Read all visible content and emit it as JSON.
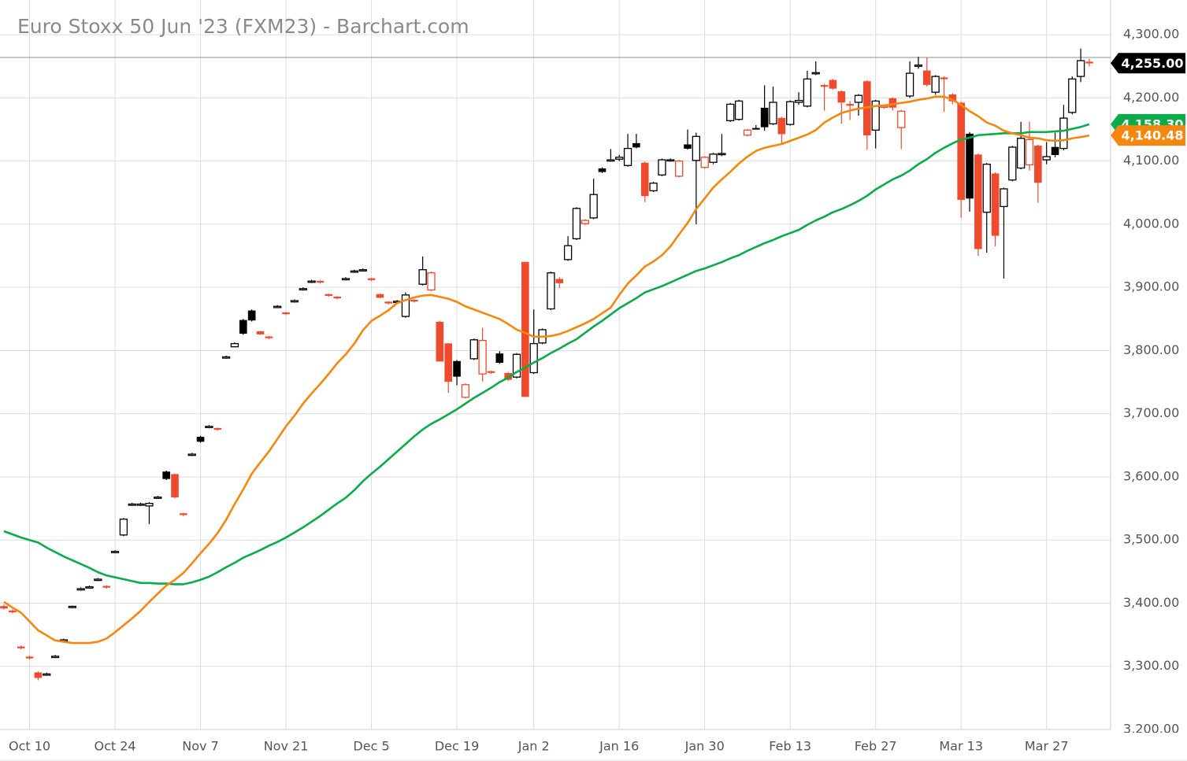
{
  "chart_data": {
    "type": "candlestick",
    "title": "Euro Stoxx 50 Jun '23 (FXM23) - Barchart.com",
    "categories": [
      null,
      null,
      null,
      "Oct 10",
      null,
      null,
      null,
      null,
      null,
      null,
      null,
      null,
      null,
      "Oct 24",
      null,
      null,
      null,
      null,
      null,
      null,
      null,
      null,
      null,
      "Nov 7",
      null,
      null,
      null,
      null,
      null,
      null,
      null,
      null,
      null,
      "Nov 21",
      null,
      null,
      null,
      null,
      null,
      null,
      null,
      null,
      null,
      "Dec 5",
      null,
      null,
      null,
      null,
      null,
      null,
      null,
      null,
      null,
      "Dec 19",
      null,
      null,
      null,
      null,
      null,
      null,
      null,
      null,
      "Jan 2",
      null,
      null,
      null,
      null,
      null,
      null,
      null,
      null,
      null,
      "Jan 16",
      null,
      null,
      null,
      null,
      null,
      null,
      null,
      null,
      null,
      "Jan 30",
      null,
      null,
      null,
      null,
      null,
      null,
      null,
      null,
      null,
      "Feb 13",
      null,
      null,
      null,
      null,
      null,
      null,
      null,
      null,
      null,
      "Feb 27",
      null,
      null,
      null,
      null,
      null,
      null,
      null,
      null,
      null,
      "Mar 13",
      null,
      null,
      null,
      null,
      null,
      null,
      null,
      null,
      null,
      "Mar 27",
      null,
      null,
      null,
      null,
      null
    ],
    "open": [
      3395,
      3388,
      3331,
      3315,
      3290,
      3286,
      3314,
      3340,
      3393,
      3421,
      3424,
      3436,
      3427,
      3480,
      3508,
      3555,
      3555,
      3554,
      3566,
      3608,
      3604,
      3542,
      3634,
      3663,
      3678,
      3677,
      3788,
      3806,
      3848,
      3863,
      3830,
      3822,
      3868,
      3860,
      3877,
      3896,
      3908,
      3910,
      3889,
      3885,
      3912,
      3924,
      3926,
      3914,
      3889,
      3877,
      3876,
      3854,
      3880,
      3905,
      3896,
      3845,
      3811,
      3783,
      3726,
      3787,
      3763,
      3767,
      3795,
      3764,
      3758,
      3940,
      3765,
      3812,
      3866,
      3913,
      3944,
      3977,
      4001,
      4010,
      4088,
      4100,
      4103,
      4093,
      4128,
      4097,
      4053,
      4078,
      4101,
      4076,
      4126,
      4101,
      4090,
      4098,
      4111,
      4164,
      4166,
      4141,
      4152,
      4184,
      4159,
      4168,
      4158,
      4193,
      4187,
      4239,
      4220,
      4228,
      4210,
      4190,
      4193,
      4226,
      4149,
      4186,
      4199,
      4153,
      4203,
      4250,
      4243,
      4209,
      4232,
      4205,
      4192,
      4143,
      4110,
      4019,
      4080,
      4028,
      4070,
      4089,
      4094,
      4124,
      4102,
      4122,
      4120,
      4177,
      4234,
      4257
    ],
    "high": [
      3398,
      3390,
      3333,
      3317,
      3292,
      3290,
      3318,
      3344,
      3396,
      3425,
      3428,
      3440,
      3428,
      3484,
      3535,
      3559,
      3559,
      3560,
      3570,
      3610,
      3605,
      3543,
      3638,
      3665,
      3682,
      3678,
      3792,
      3813,
      3850,
      3865,
      3831,
      3823,
      3872,
      3861,
      3881,
      3900,
      3912,
      3911,
      3890,
      3886,
      3916,
      3928,
      3930,
      3915,
      3890,
      3878,
      3880,
      3892,
      3881,
      3949,
      3925,
      3847,
      3812,
      3785,
      3748,
      3819,
      3836,
      3768,
      3799,
      3766,
      3796,
      3940,
      3865,
      3835,
      3925,
      3916,
      3981,
      4027,
      4008,
      4072,
      4090,
      4119,
      4110,
      4143,
      4143,
      4099,
      4067,
      4104,
      4104,
      4102,
      4150,
      4145,
      4108,
      4113,
      4143,
      4192,
      4197,
      4151,
      4157,
      4220,
      4218,
      4170,
      4196,
      4209,
      4243,
      4258,
      4222,
      4230,
      4212,
      4195,
      4206,
      4228,
      4197,
      4190,
      4201,
      4181,
      4258,
      4265,
      4264,
      4236,
      4234,
      4207,
      4194,
      4146,
      4112,
      4097,
      4082,
      4058,
      4124,
      4162,
      4162,
      4126,
      4130,
      4145,
      4189,
      4234,
      4278,
      4262
    ],
    "low": [
      3390,
      3384,
      3327,
      3311,
      3278,
      3285,
      3313,
      3339,
      3392,
      3420,
      3423,
      3435,
      3423,
      3479,
      3506,
      3554,
      3554,
      3525,
      3565,
      3595,
      3566,
      3538,
      3633,
      3654,
      3677,
      3673,
      3787,
      3805,
      3825,
      3846,
      3825,
      3818,
      3867,
      3856,
      3876,
      3895,
      3907,
      3906,
      3885,
      3881,
      3911,
      3923,
      3925,
      3910,
      3883,
      3873,
      3875,
      3852,
      3876,
      3903,
      3894,
      3783,
      3733,
      3745,
      3724,
      3785,
      3751,
      3763,
      3779,
      3752,
      3756,
      3727,
      3763,
      3810,
      3864,
      3899,
      3942,
      3975,
      3999,
      4008,
      4081,
      4099,
      4100,
      4091,
      4120,
      4035,
      4051,
      4076,
      4099,
      4074,
      4118,
      4000,
      4088,
      4095,
      4108,
      4162,
      4164,
      4139,
      4150,
      4148,
      4157,
      4128,
      4156,
      4189,
      4185,
      4236,
      4180,
      4213,
      4159,
      4165,
      4172,
      4118,
      4120,
      4183,
      4180,
      4119,
      4200,
      4246,
      4218,
      4205,
      4178,
      4190,
      4010,
      4020,
      3950,
      3955,
      3965,
      3914,
      4068,
      4087,
      4085,
      4034,
      4095,
      4106,
      4117,
      4174,
      4225,
      4250
    ],
    "close": [
      3392,
      3386,
      3329,
      3313,
      3282,
      3288,
      3316,
      3342,
      3395,
      3423,
      3426,
      3438,
      3425,
      3482,
      3533,
      3557,
      3557,
      3558,
      3568,
      3597,
      3568,
      3540,
      3636,
      3656,
      3680,
      3675,
      3790,
      3811,
      3827,
      3848,
      3826,
      3820,
      3870,
      3858,
      3879,
      3898,
      3910,
      3908,
      3887,
      3883,
      3914,
      3926,
      3928,
      3912,
      3884,
      3875,
      3878,
      3888,
      3878,
      3928,
      3923,
      3783,
      3751,
      3759,
      3746,
      3817,
      3816,
      3765,
      3781,
      3754,
      3794,
      3727,
      3811,
      3833,
      3923,
      3907,
      3966,
      4025,
      4006,
      4047,
      4083,
      4102,
      4106,
      4120,
      4122,
      4045,
      4065,
      4102,
      4102,
      4100,
      4120,
      4139,
      4106,
      4111,
      4112,
      4190,
      4195,
      4149,
      4151,
      4154,
      4193,
      4143,
      4194,
      4196,
      4230,
      4240,
      4218,
      4215,
      4193,
      4188,
      4204,
      4141,
      4195,
      4187,
      4185,
      4179,
      4239,
      4252,
      4221,
      4234,
      4230,
      4195,
      4039,
      4041,
      3961,
      4095,
      3982,
      4056,
      4122,
      4136,
      4134,
      4066,
      4107,
      4110,
      4168,
      4230,
      4259,
      4255
    ],
    "last_label": "4,255.00",
    "colors": {
      "rise": "#000000",
      "fall": "#ef4a2e",
      "label": "#000000"
    },
    "series": [
      {
        "color": "#0aac4a",
        "last_label": "4,158.30",
        "values": [
          3514,
          3509,
          3504,
          3500,
          3496,
          3488,
          3481,
          3474,
          3468,
          3462,
          3456,
          3449,
          3444,
          3441,
          3438,
          3435,
          3432,
          3432,
          3431,
          3431,
          3430,
          3430,
          3433,
          3437,
          3442,
          3449,
          3457,
          3464,
          3472,
          3478,
          3484,
          3491,
          3497,
          3504,
          3512,
          3520,
          3529,
          3538,
          3548,
          3558,
          3567,
          3579,
          3593,
          3605,
          3616,
          3628,
          3640,
          3652,
          3664,
          3675,
          3684,
          3691,
          3699,
          3707,
          3716,
          3725,
          3733,
          3741,
          3750,
          3757,
          3766,
          3773,
          3781,
          3788,
          3796,
          3803,
          3811,
          3818,
          3828,
          3838,
          3847,
          3857,
          3867,
          3875,
          3883,
          3892,
          3897,
          3902,
          3908,
          3914,
          3920,
          3926,
          3930,
          3935,
          3940,
          3946,
          3951,
          3958,
          3964,
          3970,
          3975,
          3981,
          3986,
          3991,
          3999,
          4006,
          4012,
          4019,
          4024,
          4030,
          4037,
          4045,
          4055,
          4063,
          4071,
          4077,
          4085,
          4095,
          4103,
          4113,
          4121,
          4128,
          4134,
          4137,
          4141,
          4142,
          4143,
          4144,
          4144,
          4144,
          4146,
          4146,
          4146,
          4147,
          4148,
          4151,
          4154,
          4158.3
        ]
      },
      {
        "color": "#f5870f",
        "last_label": "4,140.48",
        "values": [
          3402,
          3393,
          3385,
          3371,
          3357,
          3349,
          3341,
          3339,
          3337,
          3337,
          3337,
          3339,
          3344,
          3354,
          3365,
          3376,
          3388,
          3402,
          3415,
          3428,
          3437,
          3448,
          3463,
          3479,
          3494,
          3511,
          3532,
          3557,
          3580,
          3605,
          3623,
          3640,
          3660,
          3680,
          3697,
          3716,
          3732,
          3747,
          3763,
          3780,
          3794,
          3811,
          3832,
          3847,
          3855,
          3864,
          3875,
          3880,
          3884,
          3887,
          3888,
          3885,
          3882,
          3877,
          3870,
          3865,
          3860,
          3855,
          3850,
          3842,
          3833,
          3828,
          3822,
          3822,
          3823,
          3826,
          3831,
          3837,
          3843,
          3850,
          3859,
          3868,
          3888,
          3906,
          3919,
          3933,
          3941,
          3951,
          3965,
          3984,
          4002,
          4024,
          4041,
          4058,
          4071,
          4083,
          4096,
          4107,
          4116,
          4121,
          4124,
          4127,
          4132,
          4137,
          4142,
          4149,
          4161,
          4169,
          4176,
          4180,
          4183,
          4185,
          4187,
          4188,
          4190,
          4192,
          4194,
          4197,
          4199,
          4202,
          4202,
          4197,
          4189,
          4179,
          4171,
          4161,
          4156,
          4148,
          4144,
          4141,
          4137,
          4136,
          4133,
          4132,
          4133,
          4136,
          4138,
          4140.48
        ]
      }
    ],
    "hline": 4264,
    "ylim": [
      3200,
      4355
    ],
    "yticks": [
      {
        "value": 3200,
        "label": "3,200.00"
      },
      {
        "value": 3300,
        "label": "3,300.00"
      },
      {
        "value": 3400,
        "label": "3,400.00"
      },
      {
        "value": 3500,
        "label": "3,500.00"
      },
      {
        "value": 3600,
        "label": "3,600.00"
      },
      {
        "value": 3700,
        "label": "3,700.00"
      },
      {
        "value": 3800,
        "label": "3,800.00"
      },
      {
        "value": 3900,
        "label": "3,900.00"
      },
      {
        "value": 4000,
        "label": "4,000.00"
      },
      {
        "value": 4100,
        "label": "4,100.00"
      },
      {
        "value": 4200,
        "label": "4,200.00"
      },
      {
        "value": 4300,
        "label": "4,300.00"
      }
    ],
    "grid": true
  }
}
